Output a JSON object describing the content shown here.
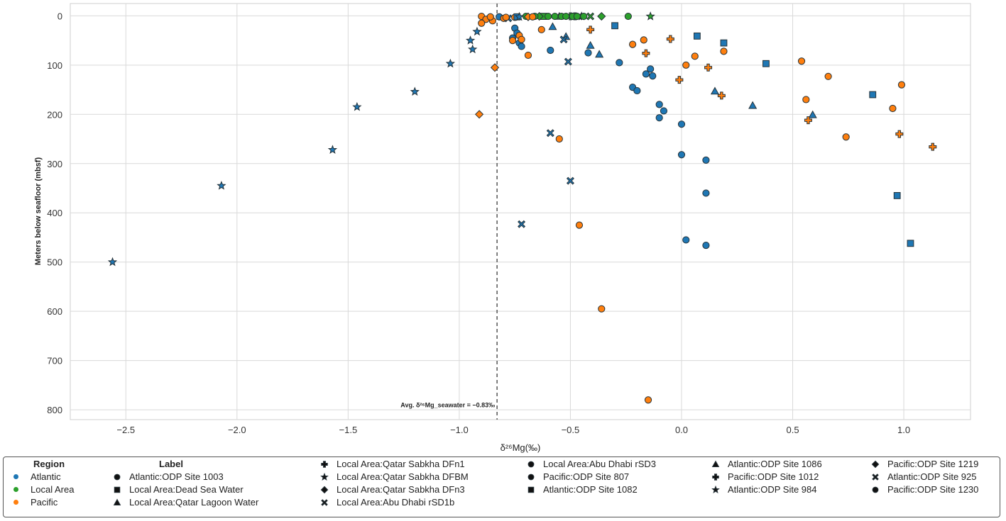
{
  "chart_data": {
    "type": "scatter",
    "title": "",
    "xlabel": "δ²⁶Mg(‰)",
    "ylabel": "Meters below seafloor (mbsf)",
    "xlim": [
      -2.75,
      1.3
    ],
    "ylim": [
      820,
      -25
    ],
    "y_inverted": true,
    "grid": true,
    "x_ticks": [
      -2.5,
      -2.0,
      -1.5,
      -1.0,
      -0.5,
      0.0,
      0.5,
      1.0
    ],
    "x_tick_labels": [
      "−2.5",
      "−2.0",
      "−1.5",
      "−1.0",
      "−0.5",
      "0.0",
      "0.5",
      "1.0"
    ],
    "y_ticks": [
      0,
      100,
      200,
      300,
      400,
      500,
      600,
      700,
      800
    ],
    "y_tick_labels": [
      "0",
      "100",
      "200",
      "300",
      "400",
      "500",
      "600",
      "700",
      "800"
    ],
    "reference_line": {
      "x": -0.83,
      "style": "dashed",
      "label": "Avg. δ²⁶Mg_seawater = −0.83‰"
    },
    "regions": [
      {
        "name": "Atlantic",
        "color": "#1f77b4"
      },
      {
        "name": "Local Area",
        "color": "#2ca02c"
      },
      {
        "name": "Pacific",
        "color": "#ff7f0e"
      }
    ],
    "legend": {
      "region_title": "Region",
      "label_title": "Label",
      "labels": [
        {
          "label": "Atlantic:ODP Site 1003",
          "marker": "circle"
        },
        {
          "label": "Local Area:Dead Sea Water",
          "marker": "square"
        },
        {
          "label": "Local Area:Qatar Lagoon Water",
          "marker": "triangle"
        },
        {
          "label": "Local Area:Qatar Sabkha DFn1",
          "marker": "plus"
        },
        {
          "label": "Local Area:Qatar Sabkha DFBM",
          "marker": "star"
        },
        {
          "label": "Local Area:Qatar Sabkha DFn3",
          "marker": "diamond"
        },
        {
          "label": "Local Area:Abu Dhabi rSD1b",
          "marker": "x"
        },
        {
          "label": "Local Area:Abu Dhabi rSD3",
          "marker": "circle"
        },
        {
          "label": "Pacific:ODP Site 807",
          "marker": "circle"
        },
        {
          "label": "Atlantic:ODP Site 1082",
          "marker": "square"
        },
        {
          "label": "Atlantic:ODP Site 1086",
          "marker": "triangle"
        },
        {
          "label": "Pacific:ODP Site 1012",
          "marker": "plus"
        },
        {
          "label": "Atlantic:ODP Site 984",
          "marker": "star"
        },
        {
          "label": "Pacific:ODP Site 1219",
          "marker": "diamond"
        },
        {
          "label": "Atlantic:ODP Site 925",
          "marker": "x"
        },
        {
          "label": "Pacific:ODP Site 1230",
          "marker": "circle"
        }
      ]
    },
    "series": [
      {
        "name": "Atlantic:ODP Site 1003",
        "region": "Atlantic",
        "marker": "circle",
        "points": [
          [
            -0.82,
            2
          ],
          [
            -0.75,
            25
          ],
          [
            -0.74,
            35
          ],
          [
            -0.76,
            45
          ],
          [
            -0.73,
            55
          ],
          [
            -0.72,
            62
          ],
          [
            -0.59,
            70
          ],
          [
            -0.42,
            75
          ],
          [
            -0.28,
            95
          ],
          [
            -0.14,
            108
          ],
          [
            -0.13,
            122
          ],
          [
            -0.16,
            118
          ],
          [
            -0.22,
            145
          ],
          [
            -0.2,
            152
          ],
          [
            -0.1,
            180
          ],
          [
            -0.08,
            193
          ],
          [
            -0.1,
            207
          ],
          [
            0.0,
            220
          ],
          [
            0.0,
            282
          ],
          [
            0.11,
            293
          ],
          [
            0.11,
            360
          ],
          [
            0.02,
            455
          ],
          [
            0.11,
            466
          ]
        ]
      },
      {
        "name": "Local Area:Dead Sea Water",
        "region": "Local Area",
        "marker": "square",
        "points": [
          [
            -0.62,
            1
          ]
        ]
      },
      {
        "name": "Local Area:Qatar Lagoon Water",
        "region": "Local Area",
        "marker": "triangle",
        "points": [
          [
            -0.55,
            1
          ]
        ]
      },
      {
        "name": "Local Area:Qatar Sabkha DFn1",
        "region": "Local Area",
        "marker": "plus",
        "points": [
          [
            -0.48,
            1
          ],
          [
            -0.5,
            1
          ]
        ]
      },
      {
        "name": "Local Area:Qatar Sabkha DFBM",
        "region": "Local Area",
        "marker": "star",
        "points": [
          [
            -0.14,
            1
          ],
          [
            -0.45,
            1
          ]
        ]
      },
      {
        "name": "Local Area:Qatar Sabkha DFn3",
        "region": "Local Area",
        "marker": "diamond",
        "points": [
          [
            -0.64,
            1
          ],
          [
            -0.36,
            1
          ]
        ]
      },
      {
        "name": "Local Area:Abu Dhabi rSD1b",
        "region": "Local Area",
        "marker": "x",
        "points": [
          [
            -0.46,
            1
          ],
          [
            -0.41,
            1
          ]
        ]
      },
      {
        "name": "Local Area:Abu Dhabi rSD3",
        "region": "Local Area",
        "marker": "circle",
        "points": [
          [
            -0.7,
            1
          ],
          [
            -0.66,
            1
          ],
          [
            -0.6,
            1
          ],
          [
            -0.57,
            1
          ],
          [
            -0.54,
            1
          ],
          [
            -0.52,
            1
          ],
          [
            -0.49,
            1
          ],
          [
            -0.47,
            1
          ],
          [
            -0.44,
            1
          ],
          [
            -0.24,
            1
          ]
        ]
      },
      {
        "name": "Pacific:ODP Site 807",
        "region": "Pacific",
        "marker": "circle",
        "points": [
          [
            -0.9,
            1
          ],
          [
            -0.88,
            7
          ],
          [
            -0.9,
            15
          ],
          [
            -0.85,
            10
          ],
          [
            -0.8,
            5
          ],
          [
            -0.75,
            3
          ],
          [
            -0.73,
            40
          ],
          [
            -0.76,
            50
          ],
          [
            -0.72,
            48
          ],
          [
            -0.69,
            80
          ],
          [
            -0.63,
            28
          ],
          [
            -0.55,
            250
          ],
          [
            -0.46,
            425
          ],
          [
            -0.36,
            595
          ],
          [
            -0.22,
            58
          ],
          [
            -0.17,
            49
          ],
          [
            -0.15,
            780
          ],
          [
            0.02,
            100
          ],
          [
            0.06,
            82
          ],
          [
            0.19,
            72
          ],
          [
            0.54,
            92
          ],
          [
            0.56,
            170
          ],
          [
            0.66,
            123
          ],
          [
            0.74,
            246
          ],
          [
            0.95,
            188
          ],
          [
            0.99,
            140
          ]
        ]
      },
      {
        "name": "Atlantic:ODP Site 1082",
        "region": "Atlantic",
        "marker": "square",
        "points": [
          [
            -0.74,
            2
          ],
          [
            -0.3,
            20
          ],
          [
            0.07,
            41
          ],
          [
            0.19,
            55
          ],
          [
            0.38,
            97
          ],
          [
            0.86,
            160
          ],
          [
            0.97,
            365
          ],
          [
            1.03,
            462
          ]
        ]
      },
      {
        "name": "Atlantic:ODP Site 1086",
        "region": "Atlantic",
        "marker": "triangle",
        "points": [
          [
            -0.58,
            22
          ],
          [
            -0.52,
            42
          ],
          [
            -0.41,
            60
          ],
          [
            -0.37,
            78
          ],
          [
            0.15,
            153
          ],
          [
            0.32,
            182
          ],
          [
            0.59,
            201
          ]
        ]
      },
      {
        "name": "Pacific:ODP Site 1012",
        "region": "Pacific",
        "marker": "plus",
        "points": [
          [
            -0.41,
            28
          ],
          [
            -0.16,
            76
          ],
          [
            -0.05,
            47
          ],
          [
            -0.01,
            130
          ],
          [
            0.12,
            105
          ],
          [
            0.18,
            162
          ],
          [
            0.57,
            212
          ],
          [
            0.98,
            240
          ],
          [
            1.13,
            266
          ]
        ]
      },
      {
        "name": "Atlantic:ODP Site 984",
        "region": "Atlantic",
        "marker": "star",
        "points": [
          [
            -0.73,
            2
          ],
          [
            -0.92,
            32
          ],
          [
            -0.95,
            50
          ],
          [
            -0.94,
            68
          ],
          [
            -1.04,
            97
          ],
          [
            -1.2,
            154
          ],
          [
            -1.46,
            185
          ],
          [
            -1.57,
            272
          ],
          [
            -2.07,
            345
          ],
          [
            -2.56,
            500
          ]
        ]
      },
      {
        "name": "Pacific:ODP Site 1219",
        "region": "Pacific",
        "marker": "diamond",
        "points": [
          [
            -0.84,
            105
          ],
          [
            -0.91,
            200
          ],
          [
            -0.69,
            2
          ]
        ]
      },
      {
        "name": "Atlantic:ODP Site 925",
        "region": "Atlantic",
        "marker": "x",
        "points": [
          [
            -0.78,
            5
          ],
          [
            -0.53,
            48
          ],
          [
            -0.51,
            93
          ],
          [
            -0.59,
            238
          ],
          [
            -0.5,
            335
          ],
          [
            -0.72,
            423
          ]
        ]
      },
      {
        "name": "Pacific:ODP Site 1230",
        "region": "Pacific",
        "marker": "circle",
        "points": [
          [
            -0.86,
            2
          ],
          [
            -0.79,
            3
          ],
          [
            -0.67,
            2
          ]
        ]
      }
    ]
  }
}
